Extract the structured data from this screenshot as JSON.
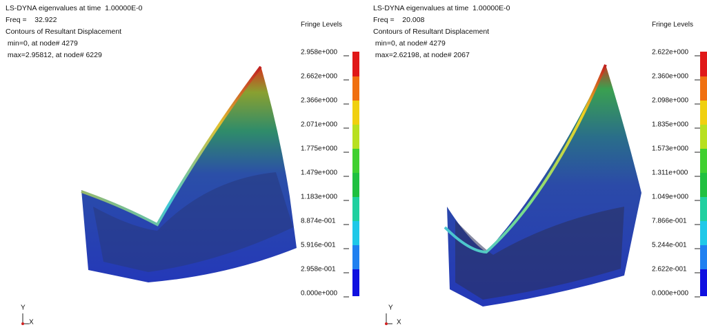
{
  "panels": [
    {
      "header": [
        "LS-DYNA eigenvalues at time  1.00000E-0",
        "Freq =    32.922",
        "Contours of Resultant Displacement",
        " min=0, at node# 4279",
        " max=2.95812, at node# 6229"
      ],
      "fringe_title": "Fringe Levels",
      "fringe_labels": [
        "2.958e+000",
        "2.662e+000",
        "2.366e+000",
        "2.071e+000",
        "1.775e+000",
        "1.479e+000",
        "1.183e+000",
        "8.874e-001",
        "5.916e-001",
        "2.958e-001",
        "0.000e+000"
      ],
      "axis_y": "Y",
      "axis_x": "X"
    },
    {
      "header": [
        "LS-DYNA eigenvalues at time  1.00000E-0",
        "Freq =    20.008",
        "Contours of Resultant Displacement",
        " min=0, at node# 4279",
        " max=2.62198, at node# 2067"
      ],
      "fringe_title": "Fringe Levels",
      "fringe_labels": [
        "2.622e+000",
        "2.360e+000",
        "2.098e+000",
        "1.835e+000",
        "1.573e+000",
        "1.311e+000",
        "1.049e+000",
        "7.866e-001",
        "5.244e-001",
        "2.622e-001",
        "0.000e+000"
      ],
      "axis_y": "Y",
      "axis_x": "X"
    }
  ]
}
